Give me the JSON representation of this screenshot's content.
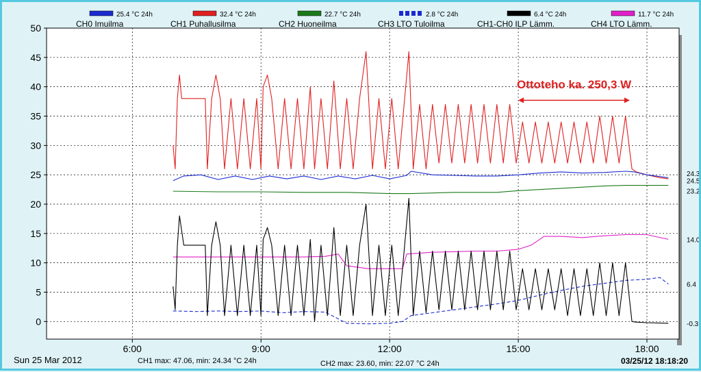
{
  "legend": [
    {
      "label": "25.4 °C 24h",
      "color": "#1a2bd0",
      "style": "solid",
      "name": "CH0 Imuilma"
    },
    {
      "label": "32.4 °C 24h",
      "color": "#e02020",
      "style": "solid",
      "name": "CH1 Puhallusilma"
    },
    {
      "label": "22.7 °C 24h",
      "color": "#1a7a1a",
      "style": "solid",
      "name": "CH2 Huoneilma"
    },
    {
      "label": "2.8 °C 24h",
      "color": "#1a2bd0",
      "style": "dashed",
      "name": "CH3 LTO Tuloilma"
    },
    {
      "label": "6.4 °C 24h",
      "color": "#000000",
      "style": "solid",
      "name": "CH1-CH0 ILP Lämm."
    },
    {
      "label": "11.7 °C 24h",
      "color": "#e020c8",
      "style": "solid",
      "name": "CH4 LTO Lämm."
    }
  ],
  "annotation": {
    "text": "Ottoteho ka. 250,3 W",
    "color": "#e02020"
  },
  "footer": {
    "date": "Sun 25 Mar 2012",
    "ch1_stats": "CH1 max: 47.06, min: 24.34 °C 24h",
    "ch2_stats": "CH2 max: 23.60, min: 22.07 °C 24h",
    "timestamp": "03/25/12 18:18:20"
  },
  "chart_data": {
    "type": "line",
    "x_ticks": [
      "6:00",
      "9:00",
      "12:00",
      "15:00",
      "18:00"
    ],
    "x_tick_hours": [
      6,
      9,
      12,
      15,
      18
    ],
    "xlim_hours": [
      4,
      18.75
    ],
    "y_ticks": [
      "50",
      "45",
      "40",
      "35",
      "30",
      "25",
      "20",
      "15",
      "10",
      "5",
      "0"
    ],
    "ylim": [
      -3,
      50
    ],
    "grid": true,
    "end_labels": [
      {
        "text": "24.3",
        "value": 24.3
      },
      {
        "text": "24.5",
        "value": 24.5
      },
      {
        "text": "23.2",
        "value": 23.2
      },
      {
        "text": "14.0",
        "value": 14.0
      },
      {
        "text": "6.4",
        "value": 6.4
      },
      {
        "text": "-0.3",
        "value": -0.3
      }
    ],
    "series": [
      {
        "name": "CH1 Puhallusilma",
        "color": "#e02020",
        "dash": "",
        "points": [
          [
            6.95,
            30
          ],
          [
            7.0,
            26
          ],
          [
            7.05,
            38
          ],
          [
            7.1,
            42
          ],
          [
            7.15,
            38
          ],
          [
            7.3,
            38
          ],
          [
            7.5,
            38
          ],
          [
            7.7,
            38
          ],
          [
            7.75,
            26
          ],
          [
            7.85,
            38
          ],
          [
            7.95,
            42
          ],
          [
            8.05,
            38
          ],
          [
            8.15,
            26
          ],
          [
            8.3,
            38
          ],
          [
            8.45,
            26
          ],
          [
            8.6,
            38
          ],
          [
            8.75,
            26
          ],
          [
            8.9,
            38
          ],
          [
            9.0,
            26
          ],
          [
            9.05,
            40
          ],
          [
            9.15,
            42
          ],
          [
            9.25,
            38
          ],
          [
            9.4,
            26
          ],
          [
            9.55,
            38
          ],
          [
            9.7,
            26
          ],
          [
            9.85,
            38
          ],
          [
            10.0,
            26
          ],
          [
            10.15,
            40
          ],
          [
            10.25,
            26
          ],
          [
            10.4,
            38
          ],
          [
            10.55,
            26
          ],
          [
            10.7,
            41
          ],
          [
            10.85,
            26
          ],
          [
            11.0,
            38
          ],
          [
            11.15,
            26
          ],
          [
            11.3,
            38
          ],
          [
            11.45,
            46
          ],
          [
            11.6,
            26
          ],
          [
            11.75,
            38
          ],
          [
            11.9,
            26
          ],
          [
            12.05,
            38
          ],
          [
            12.2,
            26
          ],
          [
            12.35,
            38
          ],
          [
            12.45,
            46
          ],
          [
            12.55,
            26
          ],
          [
            12.7,
            37
          ],
          [
            12.85,
            26
          ],
          [
            13.0,
            37
          ],
          [
            13.15,
            27
          ],
          [
            13.3,
            37
          ],
          [
            13.45,
            27
          ],
          [
            13.6,
            37
          ],
          [
            13.75,
            27
          ],
          [
            13.9,
            37
          ],
          [
            14.05,
            27
          ],
          [
            14.2,
            37
          ],
          [
            14.35,
            27
          ],
          [
            14.5,
            37
          ],
          [
            14.65,
            27
          ],
          [
            14.8,
            37
          ],
          [
            14.95,
            27
          ],
          [
            15.1,
            34
          ],
          [
            15.25,
            27
          ],
          [
            15.4,
            34
          ],
          [
            15.55,
            27
          ],
          [
            15.7,
            34
          ],
          [
            15.85,
            27
          ],
          [
            16.0,
            34
          ],
          [
            16.15,
            27
          ],
          [
            16.3,
            34
          ],
          [
            16.45,
            27
          ],
          [
            16.6,
            34
          ],
          [
            16.75,
            27
          ],
          [
            16.9,
            35
          ],
          [
            17.05,
            27
          ],
          [
            17.2,
            35
          ],
          [
            17.35,
            27
          ],
          [
            17.5,
            35
          ],
          [
            17.65,
            26
          ],
          [
            17.75,
            25.5
          ],
          [
            18.0,
            25
          ],
          [
            18.3,
            24.5
          ],
          [
            18.5,
            24.3
          ]
        ]
      },
      {
        "name": "CH0 Imuilma",
        "color": "#1a2bd0",
        "dash": "",
        "points": [
          [
            6.95,
            24
          ],
          [
            7.2,
            24.8
          ],
          [
            7.6,
            25
          ],
          [
            8.0,
            24.2
          ],
          [
            8.4,
            24.8
          ],
          [
            8.8,
            24.2
          ],
          [
            9.2,
            24.8
          ],
          [
            9.6,
            24.3
          ],
          [
            10.0,
            24.8
          ],
          [
            10.4,
            24.2
          ],
          [
            10.8,
            24.8
          ],
          [
            11.2,
            24.3
          ],
          [
            11.6,
            24.9
          ],
          [
            12.0,
            24.3
          ],
          [
            12.4,
            24.9
          ],
          [
            12.5,
            25.6
          ],
          [
            13.0,
            25
          ],
          [
            13.5,
            24.9
          ],
          [
            14.0,
            24.8
          ],
          [
            14.5,
            24.8
          ],
          [
            15.0,
            25
          ],
          [
            15.5,
            25.3
          ],
          [
            16.0,
            25.5
          ],
          [
            16.5,
            25.3
          ],
          [
            17.0,
            25.4
          ],
          [
            17.5,
            25.6
          ],
          [
            17.7,
            25.5
          ],
          [
            18.0,
            25
          ],
          [
            18.5,
            24.5
          ]
        ]
      },
      {
        "name": "CH2 Huoneilma",
        "color": "#1a7a1a",
        "dash": "",
        "points": [
          [
            6.95,
            22.2
          ],
          [
            8.0,
            22.1
          ],
          [
            9.0,
            22.1
          ],
          [
            10.0,
            22.0
          ],
          [
            11.0,
            22.0
          ],
          [
            12.0,
            21.8
          ],
          [
            12.5,
            21.8
          ],
          [
            13.5,
            22.0
          ],
          [
            14.5,
            22.0
          ],
          [
            15.0,
            22.3
          ],
          [
            16.0,
            22.7
          ],
          [
            17.0,
            23.1
          ],
          [
            17.5,
            23.2
          ],
          [
            18.5,
            23.2
          ]
        ]
      },
      {
        "name": "CH3 LTO Tuloilma",
        "color": "#1a2bd0",
        "dash": "5,3",
        "points": [
          [
            6.95,
            1.8
          ],
          [
            7.5,
            1.7
          ],
          [
            8.0,
            1.8
          ],
          [
            8.5,
            1.7
          ],
          [
            9.0,
            1.8
          ],
          [
            9.5,
            1.5
          ],
          [
            10.0,
            1.7
          ],
          [
            10.5,
            1.6
          ],
          [
            11.0,
            -0.3
          ],
          [
            11.5,
            -0.4
          ],
          [
            12.0,
            -0.3
          ],
          [
            12.3,
            0
          ],
          [
            12.5,
            1.0
          ],
          [
            13.0,
            1.5
          ],
          [
            13.5,
            2.0
          ],
          [
            14.0,
            2.5
          ],
          [
            14.5,
            3.0
          ],
          [
            15.0,
            3.6
          ],
          [
            15.5,
            4.5
          ],
          [
            16.0,
            5.3
          ],
          [
            16.5,
            6.0
          ],
          [
            17.0,
            6.5
          ],
          [
            17.5,
            7.0
          ],
          [
            18.0,
            7.2
          ],
          [
            18.3,
            7.5
          ],
          [
            18.5,
            6.4
          ]
        ]
      },
      {
        "name": "CH4 LTO Lämm.",
        "color": "#e020c8",
        "dash": "",
        "points": [
          [
            6.95,
            11
          ],
          [
            8.0,
            11
          ],
          [
            9.0,
            11
          ],
          [
            10.0,
            11
          ],
          [
            10.5,
            11.1
          ],
          [
            10.8,
            11.5
          ],
          [
            11.0,
            9.5
          ],
          [
            11.5,
            9.0
          ],
          [
            12.0,
            9.0
          ],
          [
            12.3,
            9.0
          ],
          [
            12.4,
            11.5
          ],
          [
            13.0,
            11.8
          ],
          [
            13.5,
            11.9
          ],
          [
            14.0,
            12.0
          ],
          [
            14.5,
            12.0
          ],
          [
            15.0,
            12.3
          ],
          [
            15.3,
            13.0
          ],
          [
            15.6,
            14.5
          ],
          [
            16.0,
            14.5
          ],
          [
            16.5,
            14.3
          ],
          [
            17.0,
            14.6
          ],
          [
            17.5,
            14.8
          ],
          [
            18.0,
            14.8
          ],
          [
            18.5,
            14.0
          ]
        ]
      },
      {
        "name": "CH1-CH0 ILP Lämm.",
        "color": "#000000",
        "dash": "",
        "points": [
          [
            6.95,
            6
          ],
          [
            7.0,
            2
          ],
          [
            7.05,
            13
          ],
          [
            7.1,
            18
          ],
          [
            7.2,
            13
          ],
          [
            7.5,
            13
          ],
          [
            7.7,
            13
          ],
          [
            7.75,
            1
          ],
          [
            7.85,
            13
          ],
          [
            7.95,
            17
          ],
          [
            8.05,
            13
          ],
          [
            8.15,
            1
          ],
          [
            8.3,
            13
          ],
          [
            8.45,
            1
          ],
          [
            8.6,
            13
          ],
          [
            8.75,
            1
          ],
          [
            8.9,
            13
          ],
          [
            9.0,
            1
          ],
          [
            9.05,
            14
          ],
          [
            9.15,
            16
          ],
          [
            9.25,
            13
          ],
          [
            9.4,
            1
          ],
          [
            9.55,
            13
          ],
          [
            9.7,
            1
          ],
          [
            9.85,
            13
          ],
          [
            10.0,
            1
          ],
          [
            10.15,
            14
          ],
          [
            10.25,
            0
          ],
          [
            10.4,
            13
          ],
          [
            10.55,
            1
          ],
          [
            10.7,
            16
          ],
          [
            10.85,
            1
          ],
          [
            11.0,
            13
          ],
          [
            11.15,
            1
          ],
          [
            11.3,
            13
          ],
          [
            11.45,
            20
          ],
          [
            11.6,
            1
          ],
          [
            11.75,
            13
          ],
          [
            11.9,
            1
          ],
          [
            12.05,
            13
          ],
          [
            12.2,
            1
          ],
          [
            12.35,
            13
          ],
          [
            12.45,
            21
          ],
          [
            12.55,
            1
          ],
          [
            12.7,
            12
          ],
          [
            12.85,
            1.5
          ],
          [
            13.0,
            12
          ],
          [
            13.15,
            2
          ],
          [
            13.3,
            12
          ],
          [
            13.45,
            2
          ],
          [
            13.6,
            12
          ],
          [
            13.75,
            2
          ],
          [
            13.9,
            12
          ],
          [
            14.05,
            2
          ],
          [
            14.2,
            12
          ],
          [
            14.35,
            2
          ],
          [
            14.5,
            12
          ],
          [
            14.65,
            2
          ],
          [
            14.8,
            12
          ],
          [
            14.95,
            2
          ],
          [
            15.1,
            9
          ],
          [
            15.25,
            2
          ],
          [
            15.4,
            9
          ],
          [
            15.55,
            2
          ],
          [
            15.7,
            9
          ],
          [
            15.85,
            2
          ],
          [
            16.0,
            9
          ],
          [
            16.15,
            1
          ],
          [
            16.3,
            9
          ],
          [
            16.45,
            1
          ],
          [
            16.6,
            9
          ],
          [
            16.75,
            1
          ],
          [
            16.9,
            10
          ],
          [
            17.05,
            1
          ],
          [
            17.2,
            10
          ],
          [
            17.35,
            1
          ],
          [
            17.5,
            10
          ],
          [
            17.65,
            0
          ],
          [
            17.75,
            -0.1
          ],
          [
            18.0,
            -0.2
          ],
          [
            18.5,
            -0.3
          ]
        ]
      }
    ],
    "annotation_arrow": {
      "from_hour": 15.0,
      "to_hour": 17.6,
      "value": 37.7
    }
  }
}
